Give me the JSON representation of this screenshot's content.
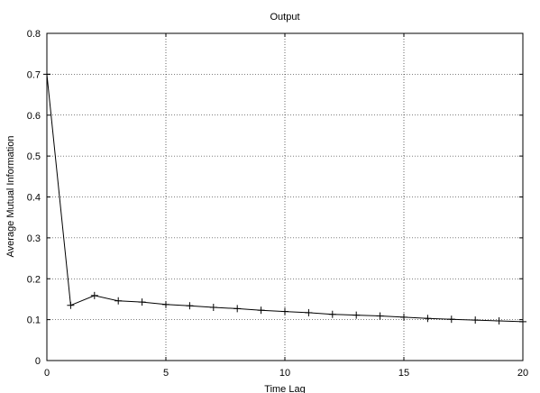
{
  "chart_data": {
    "type": "line",
    "title": "Output",
    "xlabel": "Time Lag",
    "ylabel": "Average Mutual Information",
    "xlim": [
      0,
      20
    ],
    "ylim": [
      0,
      0.8
    ],
    "xticks": [
      0,
      5,
      10,
      15,
      20
    ],
    "yticks": [
      0,
      0.1,
      0.2,
      0.3,
      0.4,
      0.5,
      0.6,
      0.7,
      0.8
    ],
    "grid": true,
    "marker": "plus",
    "series": [
      {
        "x": [
          0,
          1,
          2,
          3,
          4,
          5,
          6,
          7,
          8,
          9,
          10,
          11,
          12,
          13,
          14,
          15,
          16,
          17,
          18,
          19,
          20
        ],
        "y": [
          0.7,
          0.135,
          0.159,
          0.146,
          0.143,
          0.137,
          0.134,
          0.13,
          0.127,
          0.123,
          0.12,
          0.117,
          0.113,
          0.111,
          0.109,
          0.106,
          0.103,
          0.101,
          0.099,
          0.097,
          0.095
        ]
      }
    ]
  }
}
